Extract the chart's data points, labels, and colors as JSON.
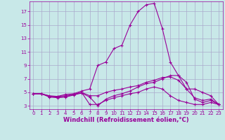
{
  "background_color": "#c8e8e8",
  "line_color": "#990099",
  "marker": "+",
  "markersize": 3,
  "linewidth": 0.8,
  "xlabel": "Windchill (Refroidissement éolien,°C)",
  "xlabel_fontsize": 6,
  "xlabel_fontweight": "bold",
  "xtick_labels": [
    "0",
    "1",
    "2",
    "3",
    "4",
    "5",
    "6",
    "7",
    "8",
    "9",
    "10",
    "11",
    "12",
    "13",
    "14",
    "15",
    "16",
    "17",
    "18",
    "19",
    "20",
    "21",
    "22",
    "23"
  ],
  "ytick_labels": [
    "3",
    "5",
    "7",
    "9",
    "11",
    "13",
    "15",
    "17"
  ],
  "ytick_vals": [
    3,
    5,
    7,
    9,
    11,
    13,
    15,
    17
  ],
  "ylim": [
    2.5,
    18.5
  ],
  "xlim": [
    -0.5,
    23.5
  ],
  "grid_color": "#aaaacc",
  "tick_fontsize": 5,
  "curves": [
    [
      4.8,
      4.8,
      4.4,
      4.4,
      4.7,
      4.8,
      5.2,
      5.5,
      9.0,
      9.5,
      11.5,
      12.0,
      15.0,
      17.0,
      18.0,
      18.2,
      14.5,
      9.5,
      7.5,
      5.5,
      5.5,
      5.0,
      4.5,
      3.2
    ],
    [
      4.8,
      4.8,
      4.3,
      4.2,
      4.3,
      4.6,
      4.9,
      4.3,
      3.0,
      4.0,
      4.5,
      4.8,
      5.2,
      5.8,
      6.3,
      6.5,
      7.0,
      7.5,
      7.5,
      6.5,
      4.0,
      3.5,
      3.8,
      3.2
    ],
    [
      4.8,
      4.8,
      4.5,
      4.4,
      4.5,
      4.7,
      5.0,
      3.2,
      3.2,
      3.8,
      4.2,
      4.5,
      4.8,
      5.0,
      5.5,
      5.8,
      5.5,
      4.5,
      3.8,
      3.5,
      3.2,
      3.2,
      3.5,
      3.2
    ],
    [
      4.8,
      4.8,
      4.4,
      4.3,
      4.4,
      4.7,
      5.0,
      4.5,
      4.5,
      5.0,
      5.3,
      5.5,
      5.8,
      6.0,
      6.5,
      6.8,
      7.2,
      7.3,
      6.8,
      5.5,
      4.2,
      3.8,
      4.0,
      3.2
    ]
  ]
}
